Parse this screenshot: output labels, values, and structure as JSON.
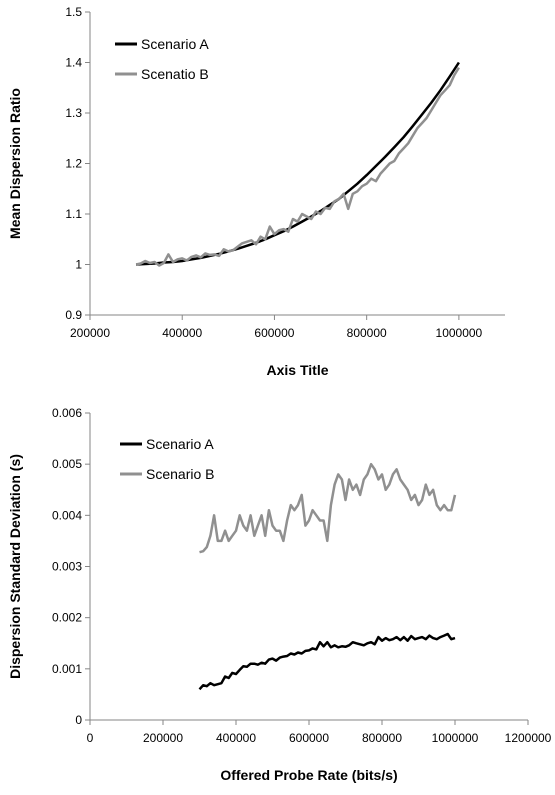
{
  "chart_data": [
    {
      "type": "line",
      "title": "",
      "xlabel": "Axis Title",
      "ylabel": "Mean Dispersion Ratio",
      "xlim": [
        200000,
        1100000
      ],
      "ylim": [
        0.9,
        1.5
      ],
      "xticks": [
        200000,
        400000,
        600000,
        800000,
        1000000
      ],
      "xtick_labels": [
        "200000",
        "400000",
        "600000",
        "800000",
        "1000000"
      ],
      "yticks": [
        0.9,
        1,
        1.1,
        1.2,
        1.3,
        1.4,
        1.5
      ],
      "ytick_labels": [
        "0.9",
        "1",
        "1.1",
        "1.2",
        "1.3",
        "1.4",
        "1.5"
      ],
      "grid": false,
      "legend_position": "top-left",
      "series": [
        {
          "name": "Scenario A",
          "color": "#000000",
          "x": [
            300000,
            320000,
            340000,
            360000,
            380000,
            400000,
            420000,
            440000,
            460000,
            480000,
            500000,
            520000,
            540000,
            560000,
            580000,
            600000,
            620000,
            640000,
            660000,
            680000,
            700000,
            720000,
            740000,
            760000,
            780000,
            800000,
            820000,
            840000,
            860000,
            880000,
            900000,
            920000,
            940000,
            960000,
            980000,
            1000000
          ],
          "y": [
            1.0,
            1.001,
            1.002,
            1.004,
            1.005,
            1.007,
            1.01,
            1.013,
            1.017,
            1.021,
            1.026,
            1.031,
            1.037,
            1.043,
            1.05,
            1.058,
            1.066,
            1.075,
            1.085,
            1.095,
            1.106,
            1.118,
            1.13,
            1.145,
            1.16,
            1.177,
            1.195,
            1.213,
            1.232,
            1.252,
            1.274,
            1.297,
            1.32,
            1.345,
            1.372,
            1.4
          ]
        },
        {
          "name": "Scenatio B",
          "color": "#909090",
          "x": [
            300000,
            310000,
            320000,
            330000,
            340000,
            350000,
            360000,
            370000,
            380000,
            390000,
            400000,
            410000,
            420000,
            430000,
            440000,
            450000,
            460000,
            470000,
            480000,
            490000,
            500000,
            510000,
            520000,
            530000,
            540000,
            550000,
            560000,
            570000,
            580000,
            590000,
            600000,
            610000,
            620000,
            630000,
            640000,
            650000,
            660000,
            670000,
            680000,
            690000,
            700000,
            710000,
            720000,
            730000,
            740000,
            750000,
            760000,
            770000,
            780000,
            790000,
            800000,
            810000,
            820000,
            830000,
            840000,
            850000,
            860000,
            870000,
            880000,
            890000,
            900000,
            910000,
            920000,
            930000,
            940000,
            950000,
            960000,
            970000,
            980000,
            990000,
            1000000
          ],
          "y": [
            1.0,
            1.002,
            1.007,
            1.003,
            1.005,
            0.998,
            1.003,
            1.02,
            1.005,
            1.01,
            1.012,
            1.008,
            1.015,
            1.018,
            1.014,
            1.022,
            1.019,
            1.02,
            1.017,
            1.03,
            1.026,
            1.028,
            1.035,
            1.042,
            1.045,
            1.048,
            1.04,
            1.055,
            1.05,
            1.075,
            1.06,
            1.068,
            1.07,
            1.065,
            1.09,
            1.085,
            1.1,
            1.095,
            1.09,
            1.105,
            1.1,
            1.112,
            1.11,
            1.125,
            1.13,
            1.14,
            1.11,
            1.14,
            1.145,
            1.155,
            1.16,
            1.17,
            1.165,
            1.18,
            1.19,
            1.2,
            1.205,
            1.22,
            1.23,
            1.24,
            1.255,
            1.27,
            1.28,
            1.29,
            1.305,
            1.32,
            1.335,
            1.345,
            1.355,
            1.375,
            1.39
          ]
        }
      ]
    },
    {
      "type": "line",
      "title": "",
      "xlabel": "Offered Probe Rate (bits/s)",
      "ylabel": "Dispersion Standard Deviation (s)",
      "xlim": [
        0,
        1200000
      ],
      "ylim": [
        0,
        0.006
      ],
      "xticks": [
        0,
        200000,
        400000,
        600000,
        800000,
        1000000,
        1200000
      ],
      "xtick_labels": [
        "0",
        "200000",
        "400000",
        "600000",
        "800000",
        "1000000",
        "1200000"
      ],
      "yticks": [
        0,
        0.001,
        0.002,
        0.003,
        0.004,
        0.005,
        0.006
      ],
      "ytick_labels": [
        "0",
        "0.001",
        "0.002",
        "0.003",
        "0.004",
        "0.005",
        "0.006"
      ],
      "grid": false,
      "legend_position": "top-left",
      "series": [
        {
          "name": "Scenario A",
          "color": "#000000",
          "x": [
            300000,
            310000,
            320000,
            330000,
            340000,
            350000,
            360000,
            370000,
            380000,
            390000,
            400000,
            410000,
            420000,
            430000,
            440000,
            450000,
            460000,
            470000,
            480000,
            490000,
            500000,
            510000,
            520000,
            530000,
            540000,
            550000,
            560000,
            570000,
            580000,
            590000,
            600000,
            610000,
            620000,
            630000,
            640000,
            650000,
            660000,
            670000,
            680000,
            690000,
            700000,
            710000,
            720000,
            730000,
            740000,
            750000,
            760000,
            770000,
            780000,
            790000,
            800000,
            810000,
            820000,
            830000,
            840000,
            850000,
            860000,
            870000,
            880000,
            890000,
            900000,
            910000,
            920000,
            930000,
            940000,
            950000,
            960000,
            970000,
            980000,
            990000,
            1000000
          ],
          "y": [
            0.0006,
            0.00068,
            0.00066,
            0.00072,
            0.00068,
            0.0007,
            0.00072,
            0.00085,
            0.00082,
            0.00092,
            0.0009,
            0.00098,
            0.00105,
            0.00104,
            0.0011,
            0.0011,
            0.00108,
            0.00112,
            0.0011,
            0.00118,
            0.0012,
            0.00116,
            0.00122,
            0.00124,
            0.00125,
            0.0013,
            0.00128,
            0.00132,
            0.0013,
            0.00135,
            0.00136,
            0.0014,
            0.00138,
            0.00152,
            0.00144,
            0.00152,
            0.00142,
            0.00146,
            0.00142,
            0.00144,
            0.00143,
            0.00146,
            0.00152,
            0.0015,
            0.00148,
            0.00146,
            0.0015,
            0.00152,
            0.00148,
            0.00162,
            0.00155,
            0.0016,
            0.00156,
            0.00158,
            0.00162,
            0.00156,
            0.00162,
            0.00155,
            0.00164,
            0.00158,
            0.0016,
            0.00162,
            0.00158,
            0.00165,
            0.0016,
            0.00158,
            0.00162,
            0.00165,
            0.00168,
            0.00158,
            0.0016
          ]
        },
        {
          "name": "Scenario B",
          "color": "#909090",
          "x": [
            300000,
            310000,
            320000,
            330000,
            340000,
            350000,
            360000,
            370000,
            380000,
            390000,
            400000,
            410000,
            420000,
            430000,
            440000,
            450000,
            460000,
            470000,
            480000,
            490000,
            500000,
            510000,
            520000,
            530000,
            540000,
            550000,
            560000,
            570000,
            580000,
            590000,
            600000,
            610000,
            620000,
            630000,
            640000,
            650000,
            660000,
            670000,
            680000,
            690000,
            700000,
            710000,
            720000,
            730000,
            740000,
            750000,
            760000,
            770000,
            780000,
            790000,
            800000,
            810000,
            820000,
            830000,
            840000,
            850000,
            860000,
            870000,
            880000,
            890000,
            900000,
            910000,
            920000,
            930000,
            940000,
            950000,
            960000,
            970000,
            980000,
            990000,
            1000000
          ],
          "y": [
            0.00328,
            0.0033,
            0.00338,
            0.0036,
            0.004,
            0.0035,
            0.0035,
            0.0037,
            0.0035,
            0.0036,
            0.0037,
            0.004,
            0.0038,
            0.0037,
            0.004,
            0.0036,
            0.0038,
            0.004,
            0.0036,
            0.0041,
            0.0038,
            0.0037,
            0.0037,
            0.0035,
            0.0039,
            0.0042,
            0.0041,
            0.0042,
            0.0044,
            0.0038,
            0.0039,
            0.0041,
            0.004,
            0.0039,
            0.0039,
            0.0035,
            0.0042,
            0.0046,
            0.0048,
            0.0047,
            0.0043,
            0.0047,
            0.0045,
            0.0046,
            0.0044,
            0.0047,
            0.0048,
            0.005,
            0.0049,
            0.0047,
            0.0048,
            0.0045,
            0.0046,
            0.0048,
            0.0049,
            0.0047,
            0.0046,
            0.0045,
            0.0043,
            0.0044,
            0.0042,
            0.0043,
            0.0046,
            0.0044,
            0.0045,
            0.0042,
            0.0041,
            0.0042,
            0.0041,
            0.0041,
            0.0044
          ]
        }
      ]
    }
  ]
}
